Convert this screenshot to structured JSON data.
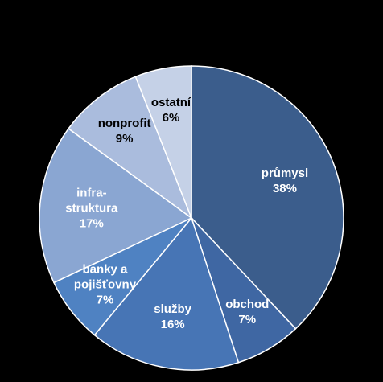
{
  "chart_data": {
    "type": "pie",
    "categories": [
      "průmysl",
      "obchod",
      "služby",
      "banky a\npojišťovny",
      "infra-\nstruktura",
      "nonprofit",
      "ostatní"
    ],
    "values": [
      38,
      7,
      16,
      7,
      17,
      9,
      6
    ],
    "value_labels": [
      "38%",
      "7%",
      "16%",
      "7%",
      "17%",
      "9%",
      "6%"
    ],
    "colors": [
      "#3b5d8c",
      "#3f67a3",
      "#4775b5",
      "#4f82c2",
      "#8aa6d2",
      "#aabcdd",
      "#c5d1e7"
    ],
    "label_colors": [
      "#ffffff",
      "#ffffff",
      "#ffffff",
      "#ffffff",
      "#ffffff",
      "#000000",
      "#000000"
    ]
  }
}
